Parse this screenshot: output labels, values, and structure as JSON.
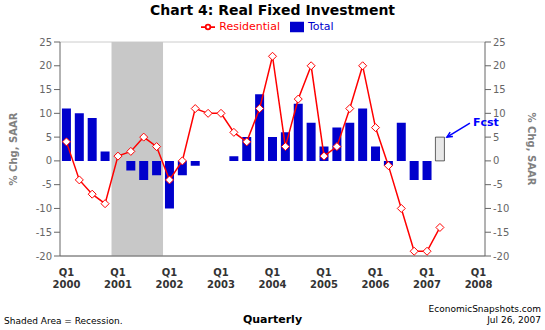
{
  "chart_data": {
    "type": "bar",
    "title": "Chart 4: Real Fixed Investment",
    "ylabel": "% Chg, SAAR",
    "y2label": "% Chg, SAAR",
    "xlabel": "Quarterly",
    "ylim": [
      -20,
      25
    ],
    "yticks": [
      -20,
      -15,
      -10,
      -5,
      0,
      5,
      10,
      15,
      20,
      25
    ],
    "y2lim": [
      -20,
      25
    ],
    "y2ticks": [
      -20,
      -15,
      -10,
      -5,
      0,
      5,
      10,
      15,
      20,
      25
    ],
    "grid": true,
    "categories": [
      "Q1 2000",
      null,
      null,
      null,
      "Q1 2001",
      null,
      null,
      null,
      "Q1 2002",
      null,
      null,
      null,
      "Q1 2003",
      null,
      null,
      null,
      "Q1 2004",
      null,
      null,
      null,
      "Q1 2005",
      null,
      null,
      null,
      "Q1 2006",
      null,
      null,
      null,
      "Q1 2007",
      null,
      null,
      null,
      "Q1 2008"
    ],
    "series": [
      {
        "name": "Total",
        "type": "bar",
        "color": "#0000CC",
        "colors": [
          "#0000CC",
          "#0000CC",
          "#0000CC",
          "#0000CC",
          "#0000CC",
          "#0000CC",
          "#0000CC",
          "#0000CC",
          "#0000CC",
          "#0000CC",
          "#0000CC",
          "#0000CC",
          "#0000CC",
          "#0000CC",
          "#0000CC",
          "#0000CC",
          "#0000CC",
          "#0000CC",
          "#0000CC",
          "#0000CC",
          "#0000CC",
          "#0000CC",
          "#0000CC",
          "#0000CC",
          "#0000CC",
          "#0000CC",
          "#0000CC",
          "#0000CC",
          "#0000CC",
          "#E8E8E8",
          null,
          null,
          null
        ],
        "values": [
          11,
          10,
          9,
          2,
          0,
          -2,
          -4,
          -3,
          -10,
          -3,
          -1,
          0,
          0,
          1,
          5,
          14,
          5,
          6,
          12,
          8,
          3,
          7,
          8,
          11,
          3,
          -1,
          8,
          -4,
          -4,
          5,
          null,
          null,
          null
        ]
      },
      {
        "name": "Residential",
        "type": "line",
        "color": "#FF0000",
        "marker": "diamond",
        "values": [
          4,
          -4,
          -7,
          -9,
          1,
          2,
          5,
          3,
          -4,
          0,
          11,
          10,
          10,
          6,
          4,
          11,
          22,
          3,
          13,
          20,
          1,
          3,
          11,
          20,
          7,
          -1,
          -10,
          -19,
          -19,
          -14,
          null,
          null,
          null
        ]
      }
    ],
    "shaded_area": {
      "start": 4,
      "end": 8,
      "color": "#C8C8C8",
      "label": "Shaded Area = Recession."
    },
    "annotations": [
      {
        "text": "Fcst",
        "color": "#0000FF",
        "index": 29,
        "y": 5
      }
    ],
    "watermark": [
      "EconomicSnapshots.com",
      "Jul 26, 2007"
    ]
  }
}
